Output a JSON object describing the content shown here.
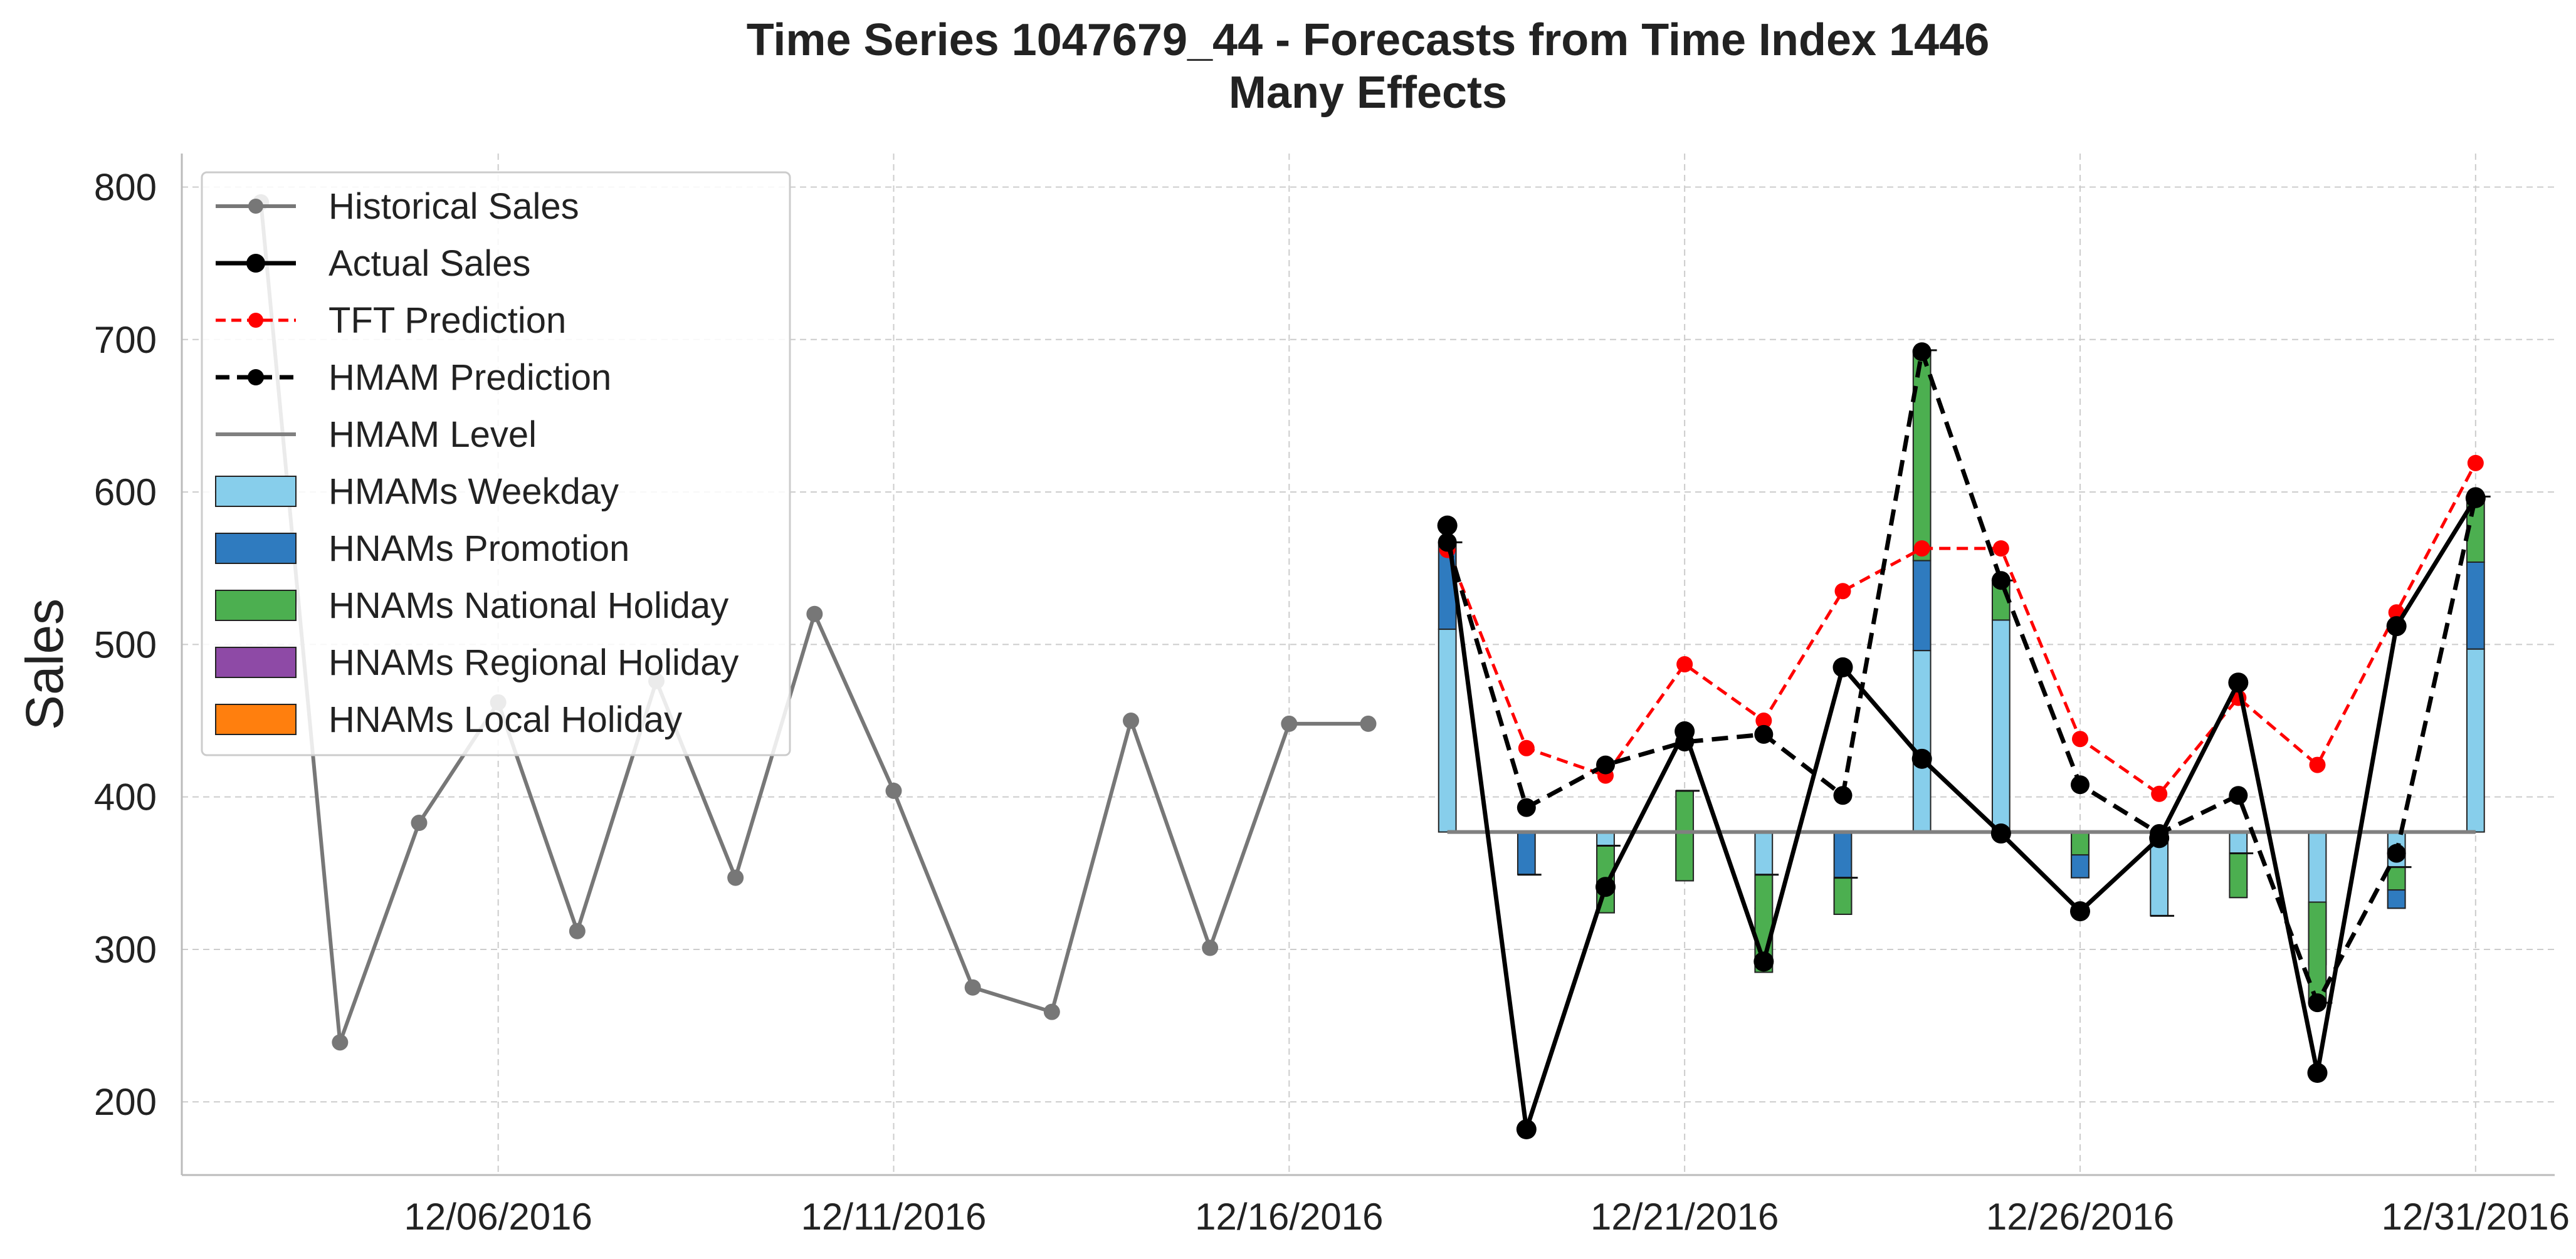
{
  "chart_data": {
    "type": "line",
    "title": "Time Series 1047679_44 - Forecasts from Time Index 1446",
    "subtitle": "Many Effects",
    "xlabel": "",
    "ylabel": "Sales",
    "ylim": [
      152,
      822
    ],
    "xlim": [
      "2016-12-02",
      "2017-01-01"
    ],
    "grid": true,
    "legend_position": "top-left",
    "x_ticks": [
      "12/06/2016",
      "12/11/2016",
      "12/16/2016",
      "12/21/2016",
      "12/26/2016",
      "12/31/2016"
    ],
    "y_ticks": [
      200,
      300,
      400,
      500,
      600,
      700,
      800
    ],
    "hmam_level": 377,
    "colors": {
      "historical": "#777777",
      "actual": "#000000",
      "tft": "#ff0000",
      "hmam": "#000000",
      "level": "#808080",
      "weekday": "#87ceeb",
      "promotion": "#2f7bbf",
      "national": "#4caf50",
      "regional": "#8e4aa6",
      "local": "#ff7f0e",
      "grid": "#cccccc"
    },
    "legend": [
      {
        "label": "Historical Sales",
        "kind": "hist"
      },
      {
        "label": "Actual Sales",
        "kind": "actual"
      },
      {
        "label": "TFT Prediction",
        "kind": "tft"
      },
      {
        "label": "HMAM Prediction",
        "kind": "hmam"
      },
      {
        "label": "HMAM Level",
        "kind": "level"
      },
      {
        "label": "HMAMs Weekday",
        "kind": "weekday"
      },
      {
        "label": "HNAMs Promotion",
        "kind": "promotion"
      },
      {
        "label": "HNAMs National Holiday",
        "kind": "national"
      },
      {
        "label": "HNAMs Regional Holiday",
        "kind": "regional"
      },
      {
        "label": "HNAMs Local Holiday",
        "kind": "local"
      }
    ],
    "series": [
      {
        "name": "Historical Sales",
        "x": [
          "2016-12-03",
          "2016-12-04",
          "2016-12-05",
          "2016-12-06",
          "2016-12-07",
          "2016-12-08",
          "2016-12-09",
          "2016-12-10",
          "2016-12-11",
          "2016-12-12",
          "2016-12-13",
          "2016-12-14",
          "2016-12-15",
          "2016-12-16",
          "2016-12-17"
        ],
        "values": [
          790,
          239,
          383,
          462,
          312,
          476,
          347,
          520,
          404,
          275,
          259,
          450,
          301,
          448,
          448
        ]
      },
      {
        "name": "Actual Sales",
        "x": [
          "2016-12-18",
          "2016-12-19",
          "2016-12-20",
          "2016-12-21",
          "2016-12-22",
          "2016-12-23",
          "2016-12-24",
          "2016-12-25",
          "2016-12-26",
          "2016-12-27",
          "2016-12-28",
          "2016-12-29",
          "2016-12-30",
          "2016-12-31"
        ],
        "values": [
          578,
          182,
          341,
          443,
          292,
          485,
          425,
          376,
          325,
          373,
          475,
          219,
          512,
          596
        ]
      },
      {
        "name": "TFT Prediction",
        "x": [
          "2016-12-18",
          "2016-12-19",
          "2016-12-20",
          "2016-12-21",
          "2016-12-22",
          "2016-12-23",
          "2016-12-24",
          "2016-12-25",
          "2016-12-26",
          "2016-12-27",
          "2016-12-28",
          "2016-12-29",
          "2016-12-30",
          "2016-12-31"
        ],
        "values": [
          562,
          432,
          414,
          487,
          450,
          535,
          563,
          563,
          438,
          402,
          465,
          421,
          521,
          619
        ]
      },
      {
        "name": "HMAM Prediction",
        "x": [
          "2016-12-18",
          "2016-12-19",
          "2016-12-20",
          "2016-12-21",
          "2016-12-22",
          "2016-12-23",
          "2016-12-24",
          "2016-12-25",
          "2016-12-26",
          "2016-12-27",
          "2016-12-28",
          "2016-12-29",
          "2016-12-30",
          "2016-12-31"
        ],
        "values": [
          567,
          393,
          421,
          436,
          441,
          401,
          692,
          542,
          408,
          376,
          401,
          265,
          363,
          597
        ]
      }
    ],
    "effects": [
      {
        "x": "2016-12-18",
        "weekday": 133,
        "promotion": 57,
        "national": 0
      },
      {
        "x": "2016-12-19",
        "weekday": 0,
        "promotion": -28,
        "national": 0
      },
      {
        "x": "2016-12-20",
        "weekday": -30,
        "promotion": -23,
        "national": 44
      },
      {
        "x": "2016-12-21",
        "weekday": 0,
        "promotion": -32,
        "national": 59
      },
      {
        "x": "2016-12-22",
        "weekday": -50,
        "promotion": -42,
        "national": 64
      },
      {
        "x": "2016-12-23",
        "weekday": 0,
        "promotion": -54,
        "national": 24
      },
      {
        "x": "2016-12-24",
        "weekday": 119,
        "promotion": 59,
        "national": 138
      },
      {
        "x": "2016-12-25",
        "weekday": 139,
        "promotion": 0,
        "national": 26
      },
      {
        "x": "2016-12-26",
        "weekday": -30,
        "promotion": 15,
        "national": 15
      },
      {
        "x": "2016-12-27",
        "weekday": -55,
        "promotion": 0,
        "national": 0
      },
      {
        "x": "2016-12-28",
        "weekday": -38,
        "promotion": -5,
        "national": 29
      },
      {
        "x": "2016-12-29",
        "weekday": -87,
        "promotion": 41,
        "national": -66
      },
      {
        "x": "2016-12-30",
        "weekday": -50,
        "promotion": 12,
        "national": 15
      },
      {
        "x": "2016-12-31",
        "weekday": 120,
        "promotion": 57,
        "national": 43
      }
    ]
  }
}
